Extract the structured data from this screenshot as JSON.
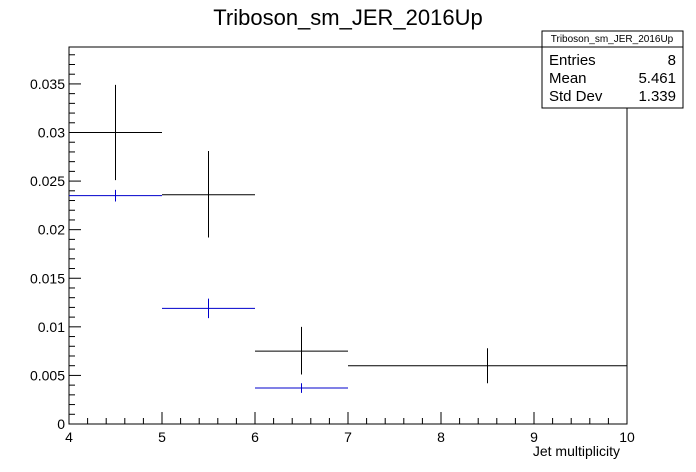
{
  "chart_data": {
    "type": "scatter",
    "title": "Triboson_sm_JER_2016Up",
    "xlabel": "Jet multiplicity",
    "ylabel": "",
    "xlim": [
      4,
      10
    ],
    "ylim": [
      0,
      0.0388
    ],
    "x_ticks": [
      "4",
      "5",
      "6",
      "7",
      "8",
      "9",
      "10"
    ],
    "y_ticks": [
      "0",
      "0.005",
      "0.01",
      "0.015",
      "0.02",
      "0.025",
      "0.03",
      "0.035"
    ],
    "series": [
      {
        "color": "#000000",
        "points": [
          {
            "xlow": 4,
            "xhigh": 5,
            "y": 0.03,
            "yerr_low": 0.0049,
            "yerr_high": 0.0049
          },
          {
            "xlow": 5,
            "xhigh": 6,
            "y": 0.0236,
            "yerr_low": 0.0044,
            "yerr_high": 0.0045
          },
          {
            "xlow": 6,
            "xhigh": 7,
            "y": 0.0075,
            "yerr_low": 0.0024,
            "yerr_high": 0.0025
          },
          {
            "xlow": 7,
            "xhigh": 10,
            "y": 0.006,
            "yerr_low": 0.0018,
            "yerr_high": 0.0018
          }
        ]
      },
      {
        "color": "#0000cc",
        "points": [
          {
            "xlow": 4,
            "xhigh": 5,
            "y": 0.0235,
            "yerr_low": 0.0006,
            "yerr_high": 0.0006
          },
          {
            "xlow": 5,
            "xhigh": 6,
            "y": 0.0119,
            "yerr_low": 0.001,
            "yerr_high": 0.001
          },
          {
            "xlow": 6,
            "xhigh": 7,
            "y": 0.0037,
            "yerr_low": 0.0005,
            "yerr_high": 0.0005
          }
        ]
      }
    ],
    "stats_box": {
      "title": "Triboson_sm_JER_2016Up",
      "rows": [
        {
          "label": "Entries",
          "value": "8"
        },
        {
          "label": "Mean",
          "value": "5.461"
        },
        {
          "label": "Std Dev",
          "value": "1.339"
        }
      ]
    }
  }
}
